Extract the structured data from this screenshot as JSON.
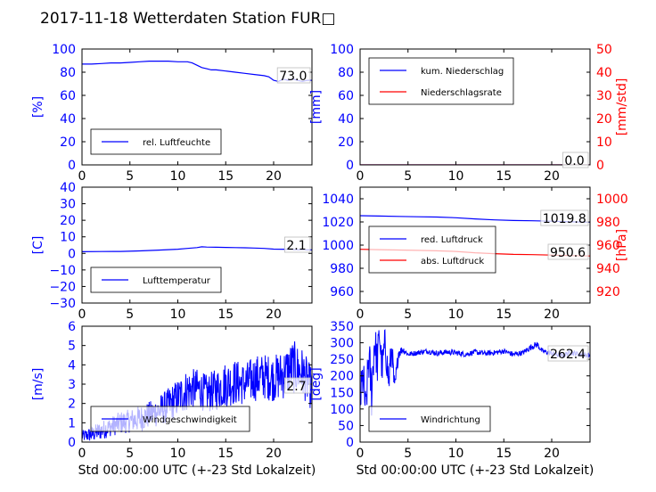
{
  "title": "2017-11-18 Wetterdaten Station FUR□",
  "colors": {
    "primary": "#0000ff",
    "secondary": "#ff0000",
    "axis": "#000000",
    "background": "#ffffff"
  },
  "chart_data": [
    {
      "id": "humidity",
      "type": "line",
      "xlim": [
        0,
        24
      ],
      "ylim": [
        0,
        100
      ],
      "xticks": [
        "0",
        "5",
        "10",
        "15",
        "20"
      ],
      "yticks": [
        "0",
        "20",
        "40",
        "60",
        "80",
        "100"
      ],
      "ylabel": "[%]",
      "xlabel": "",
      "last_value": "73.0",
      "legend_position": "lower-left",
      "series": [
        {
          "name": "rel. Luftfeuchte",
          "color": "#0000ff",
          "x": [
            0,
            1,
            2,
            3,
            4,
            5,
            6,
            7,
            8,
            9,
            10,
            11,
            11.5,
            12,
            12.5,
            13,
            13.5,
            14,
            15,
            16,
            17,
            18,
            19,
            19.5,
            20,
            20.5,
            21,
            21.5,
            22,
            22.5,
            23,
            23.5,
            24
          ],
          "y": [
            87,
            87,
            87.5,
            88,
            88,
            88.5,
            89,
            89.5,
            89.5,
            89.5,
            89,
            89,
            88,
            86,
            84,
            83,
            82,
            82,
            81,
            80,
            79,
            78,
            77,
            76,
            73,
            72,
            74,
            73,
            74,
            73,
            72,
            73,
            73
          ]
        }
      ]
    },
    {
      "id": "precip",
      "type": "line",
      "xlim": [
        0,
        24
      ],
      "ylim": [
        0,
        100
      ],
      "ylim_right": [
        0,
        50
      ],
      "xticks": [
        "0",
        "5",
        "10",
        "15",
        "20"
      ],
      "yticks": [
        "0",
        "20",
        "40",
        "60",
        "80",
        "100"
      ],
      "yticks_right": [
        "0",
        "10",
        "20",
        "30",
        "40",
        "50"
      ],
      "ylabel": "[mm]",
      "ylabel_right": "[mm/std]",
      "xlabel": "",
      "last_value": "0.0",
      "legend_position": "upper-left",
      "series": [
        {
          "name": "kum. Niederschlag",
          "color": "#0000ff",
          "axis": "left",
          "x": [
            0,
            24
          ],
          "y": [
            0,
            0
          ]
        },
        {
          "name": "Niederschlagsrate",
          "color": "#ff0000",
          "axis": "right",
          "x": [
            0,
            24
          ],
          "y": [
            0,
            0
          ]
        }
      ]
    },
    {
      "id": "temperature",
      "type": "line",
      "xlim": [
        0,
        24
      ],
      "ylim": [
        -30,
        40
      ],
      "xticks": [
        "0",
        "5",
        "10",
        "15",
        "20"
      ],
      "yticks": [
        "−30",
        "−20",
        "−10",
        "0",
        "10",
        "20",
        "30",
        "40"
      ],
      "ylabel": "[C]",
      "xlabel": "",
      "last_value": "2.1",
      "legend_position": "lower-left",
      "series": [
        {
          "name": "Lufttemperatur",
          "color": "#0000ff",
          "x": [
            0,
            2,
            4,
            6,
            8,
            10,
            11,
            12,
            12.5,
            13,
            14,
            15,
            16,
            17,
            18,
            19,
            20,
            21,
            22,
            23,
            24
          ],
          "y": [
            1.0,
            1.1,
            1.2,
            1.5,
            2.0,
            2.5,
            3.0,
            3.5,
            4.0,
            3.8,
            3.7,
            3.6,
            3.5,
            3.4,
            3.2,
            3.0,
            2.6,
            2.5,
            2.3,
            2.2,
            2.1
          ]
        }
      ]
    },
    {
      "id": "pressure",
      "type": "line",
      "xlim": [
        0,
        24
      ],
      "ylim": [
        950,
        1050
      ],
      "ylim_right": [
        910,
        1010
      ],
      "xticks": [
        "0",
        "5",
        "10",
        "15",
        "20"
      ],
      "yticks": [
        "960",
        "980",
        "1000",
        "1020",
        "1040"
      ],
      "yticks_right": [
        "920",
        "940",
        "960",
        "980",
        "1000"
      ],
      "ylabel": "",
      "ylabel_right": "[hPa]",
      "xlabel": "",
      "last_value": "1019.8",
      "last_value_right": "950.6",
      "legend_position": "lower-left",
      "series": [
        {
          "name": "red. Luftdruck",
          "color": "#0000ff",
          "axis": "left",
          "x": [
            0,
            2,
            4,
            6,
            8,
            10,
            12,
            14,
            16,
            18,
            20,
            22,
            24
          ],
          "y": [
            1025.4,
            1025.1,
            1024.8,
            1024.5,
            1024.2,
            1023.6,
            1022.6,
            1021.8,
            1021.2,
            1021.0,
            1020.6,
            1020.1,
            1019.8
          ]
        },
        {
          "name": "abs. Luftdruck",
          "color": "#ff0000",
          "axis": "right",
          "x": [
            0,
            2,
            4,
            6,
            8,
            10,
            12,
            14,
            16,
            18,
            20,
            22,
            24
          ],
          "y": [
            956.4,
            956.1,
            955.8,
            955.5,
            955.1,
            954.5,
            953.4,
            952.6,
            952.0,
            951.8,
            951.4,
            950.9,
            950.6
          ]
        }
      ]
    },
    {
      "id": "wind_speed",
      "type": "line",
      "xlim": [
        0,
        24
      ],
      "ylim": [
        0,
        6
      ],
      "xticks": [
        "0",
        "5",
        "10",
        "15",
        "20"
      ],
      "yticks": [
        "0",
        "1",
        "2",
        "3",
        "4",
        "5",
        "6"
      ],
      "ylabel": "[m/s]",
      "xlabel": "Std 00:00:00 UTC (+-23 Std Lokalzeit)",
      "last_value": "2.7",
      "legend_position": "lower-left",
      "series": [
        {
          "name": "Windgeschwindigkeit",
          "color": "#0000ff",
          "x": [
            0,
            1,
            2,
            3,
            4,
            5,
            6,
            7,
            8,
            9,
            10,
            11,
            12,
            13,
            14,
            15,
            16,
            17,
            18,
            19,
            20,
            21,
            22,
            23,
            24
          ],
          "y": [
            0.3,
            0.4,
            0.6,
            0.8,
            1.0,
            1.1,
            1.2,
            1.4,
            1.6,
            1.9,
            2.3,
            2.7,
            2.8,
            2.5,
            2.7,
            3.0,
            3.1,
            3.0,
            3.3,
            3.4,
            3.3,
            3.5,
            3.9,
            3.6,
            2.7
          ],
          "spread": [
            0.3,
            0.4,
            0.5,
            0.5,
            0.6,
            0.6,
            0.7,
            0.7,
            0.8,
            0.9,
            1.0,
            1.1,
            1.0,
            1.0,
            1.1,
            1.2,
            1.2,
            1.1,
            1.2,
            1.2,
            1.2,
            1.3,
            1.4,
            1.3,
            1.1
          ]
        }
      ]
    },
    {
      "id": "wind_dir",
      "type": "line",
      "xlim": [
        0,
        24
      ],
      "ylim": [
        0,
        350
      ],
      "xticks": [
        "0",
        "5",
        "10",
        "15",
        "20"
      ],
      "yticks": [
        "0",
        "50",
        "100",
        "150",
        "200",
        "250",
        "300",
        "350"
      ],
      "ylabel": "[deg]",
      "xlabel": "Std 00:00:00 UTC (+-23 Std Lokalzeit)",
      "last_value": "262.4",
      "legend_position": "lower-left",
      "series": [
        {
          "name": "Windrichtung",
          "color": "#0000ff",
          "x": [
            0,
            0.3,
            0.6,
            0.9,
            1.2,
            1.5,
            1.8,
            2.0,
            2.3,
            2.6,
            3.0,
            3.3,
            3.6,
            4.0,
            4.5,
            5,
            6,
            7,
            8,
            9,
            10,
            11,
            12,
            13,
            14,
            15,
            16,
            17,
            18,
            18.5,
            19,
            20,
            21,
            22,
            23,
            24
          ],
          "y": [
            120,
            200,
            90,
            260,
            150,
            310,
            240,
            330,
            220,
            300,
            180,
            290,
            150,
            270,
            280,
            265,
            270,
            275,
            268,
            272,
            270,
            265,
            272,
            268,
            270,
            275,
            265,
            270,
            290,
            295,
            275,
            268,
            262,
            270,
            265,
            262
          ],
          "spread": [
            60,
            80,
            60,
            80,
            80,
            60,
            70,
            40,
            60,
            50,
            60,
            40,
            40,
            20,
            10,
            8,
            8,
            8,
            8,
            8,
            8,
            8,
            8,
            8,
            8,
            8,
            8,
            8,
            10,
            10,
            8,
            8,
            8,
            8,
            8,
            8
          ]
        }
      ]
    }
  ]
}
